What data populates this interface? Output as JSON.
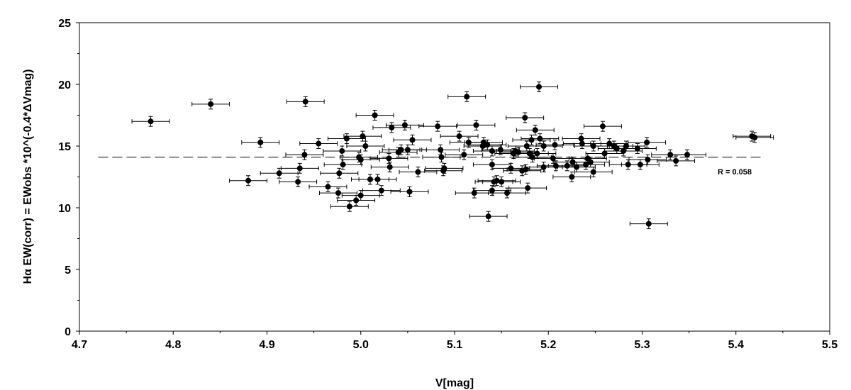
{
  "chart_data": {
    "type": "scatter",
    "xlabel": "V[mag]",
    "ylabel": "Hα EW(corr) =  EWobs *10^(-0.4*ΔVmag)",
    "xlim": [
      4.7,
      5.5
    ],
    "ylim": [
      0,
      25
    ],
    "x_ticks": [
      "4.7",
      "4.8",
      "4.9",
      "5.0",
      "5.1",
      "5.2",
      "5.3",
      "5.4",
      "5.5"
    ],
    "y_ticks": [
      "0",
      "5",
      "10",
      "15",
      "20",
      "25"
    ],
    "grid": false,
    "error_bars": {
      "x": 0.02,
      "y": 0.4
    },
    "annotation": "R = 0.058",
    "trend_line": {
      "x": [
        4.72,
        5.43
      ],
      "y": [
        14.1,
        14.1
      ],
      "style": "dashed"
    },
    "points": [
      [
        4.776,
        17.0
      ],
      [
        4.84,
        18.4
      ],
      [
        4.941,
        18.6
      ],
      [
        4.88,
        12.2
      ],
      [
        4.893,
        15.3
      ],
      [
        4.913,
        12.8
      ],
      [
        4.933,
        12.1
      ],
      [
        4.935,
        13.2
      ],
      [
        4.94,
        14.3
      ],
      [
        4.955,
        15.2
      ],
      [
        4.965,
        11.7
      ],
      [
        4.976,
        11.2
      ],
      [
        4.977,
        12.8
      ],
      [
        4.98,
        14.6
      ],
      [
        4.981,
        13.5
      ],
      [
        4.985,
        15.6
      ],
      [
        4.988,
        10.1
      ],
      [
        4.995,
        10.6
      ],
      [
        4.998,
        14.1
      ],
      [
        5.0,
        13.9
      ],
      [
        5.0,
        11.0
      ],
      [
        5.002,
        15.8
      ],
      [
        5.005,
        15.0
      ],
      [
        5.01,
        12.3
      ],
      [
        5.015,
        17.5
      ],
      [
        5.018,
        12.3
      ],
      [
        5.022,
        11.4
      ],
      [
        5.03,
        14.0
      ],
      [
        5.031,
        13.3
      ],
      [
        5.033,
        16.5
      ],
      [
        5.04,
        14.5
      ],
      [
        5.043,
        14.7
      ],
      [
        5.047,
        16.7
      ],
      [
        5.05,
        14.7
      ],
      [
        5.052,
        11.3
      ],
      [
        5.055,
        15.5
      ],
      [
        5.061,
        12.9
      ],
      [
        5.082,
        16.6
      ],
      [
        5.085,
        14.7
      ],
      [
        5.086,
        14.1
      ],
      [
        5.088,
        13.0
      ],
      [
        5.089,
        13.2
      ],
      [
        5.105,
        15.8
      ],
      [
        5.11,
        14.3
      ],
      [
        5.113,
        19.0
      ],
      [
        5.115,
        15.3
      ],
      [
        5.121,
        11.2
      ],
      [
        5.123,
        16.7
      ],
      [
        5.13,
        15.0
      ],
      [
        5.131,
        15.3
      ],
      [
        5.135,
        15.1
      ],
      [
        5.136,
        9.3
      ],
      [
        5.14,
        14.6
      ],
      [
        5.14,
        13.5
      ],
      [
        5.14,
        11.4
      ],
      [
        5.142,
        12.1
      ],
      [
        5.145,
        12.2
      ],
      [
        5.149,
        14.7
      ],
      [
        5.15,
        12.1
      ],
      [
        5.156,
        11.2
      ],
      [
        5.16,
        13.2
      ],
      [
        5.163,
        14.4
      ],
      [
        5.165,
        14.6
      ],
      [
        5.168,
        14.5
      ],
      [
        5.172,
        13.0
      ],
      [
        5.175,
        17.3
      ],
      [
        5.176,
        13.1
      ],
      [
        5.177,
        15.0
      ],
      [
        5.178,
        11.6
      ],
      [
        5.18,
        14.4
      ],
      [
        5.182,
        15.5
      ],
      [
        5.183,
        14.1
      ],
      [
        5.186,
        16.3
      ],
      [
        5.188,
        14.4
      ],
      [
        5.19,
        19.8
      ],
      [
        5.191,
        15.6
      ],
      [
        5.195,
        15.0
      ],
      [
        5.195,
        13.3
      ],
      [
        5.205,
        14.0
      ],
      [
        5.207,
        15.1
      ],
      [
        5.208,
        13.4
      ],
      [
        5.22,
        13.4
      ],
      [
        5.225,
        12.5
      ],
      [
        5.226,
        13.7
      ],
      [
        5.23,
        13.3
      ],
      [
        5.235,
        15.6
      ],
      [
        5.236,
        15.2
      ],
      [
        5.24,
        13.5
      ],
      [
        5.242,
        14.0
      ],
      [
        5.245,
        13.7
      ],
      [
        5.248,
        15.0
      ],
      [
        5.248,
        12.9
      ],
      [
        5.258,
        16.6
      ],
      [
        5.26,
        14.4
      ],
      [
        5.265,
        15.2
      ],
      [
        5.27,
        15.0
      ],
      [
        5.273,
        14.8
      ],
      [
        5.28,
        14.6
      ],
      [
        5.283,
        15.0
      ],
      [
        5.285,
        13.5
      ],
      [
        5.295,
        14.8
      ],
      [
        5.298,
        13.5
      ],
      [
        5.305,
        15.3
      ],
      [
        5.306,
        13.9
      ],
      [
        5.307,
        8.7
      ],
      [
        5.33,
        14.3
      ],
      [
        5.336,
        13.8
      ],
      [
        5.348,
        14.3
      ],
      [
        5.417,
        15.8
      ],
      [
        5.42,
        15.7
      ]
    ]
  }
}
